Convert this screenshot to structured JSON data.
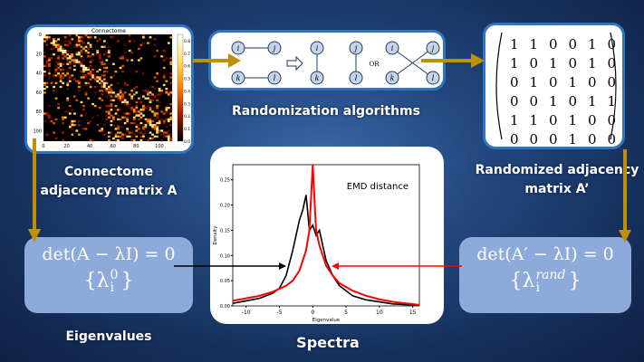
{
  "connectome": {
    "title": "Connectome",
    "caption_line1": "Connectome",
    "caption_line2": "adjacency matrix A",
    "axis_ticks": [
      "0",
      "20",
      "40",
      "60",
      "80",
      "100"
    ],
    "colorbar_ticks": [
      "0.0",
      "0.1",
      "0.2",
      "0.3",
      "0.4",
      "0.5",
      "0.6",
      "0.7",
      "0.8"
    ]
  },
  "randomization": {
    "caption": "Randomization algorithms",
    "or_label": "OR",
    "nodes": [
      "i",
      "j",
      "k",
      "l"
    ]
  },
  "randomized_matrix": {
    "caption_line1": "Randomized adjacency",
    "caption_line2": "matrix A’",
    "rows": [
      [
        1,
        1,
        0,
        0,
        1,
        0
      ],
      [
        1,
        0,
        1,
        0,
        1,
        0
      ],
      [
        0,
        1,
        0,
        1,
        0,
        0
      ],
      [
        0,
        0,
        1,
        0,
        1,
        1
      ],
      [
        1,
        1,
        0,
        1,
        0,
        0
      ],
      [
        0,
        0,
        0,
        1,
        0,
        0
      ]
    ]
  },
  "eigen_left": {
    "equation": "det(A − λI) = 0",
    "set": "{λ",
    "sup": "0",
    "sub": "i",
    "close": "}",
    "caption": "Eigenvalues"
  },
  "eigen_right": {
    "equation": "det(A′ − λI) = 0",
    "set": "{λ",
    "sup": "rand",
    "sub": "i",
    "close": "}"
  },
  "spectra": {
    "caption": "Spectra",
    "annotation": "EMD distance"
  },
  "colors": {
    "arrow": "#bf9000",
    "box_border": "#2e75c0",
    "eigen_box": "#8eaadb",
    "original": "#000000",
    "randomized": "#ff0000"
  },
  "chart_data": {
    "type": "line",
    "xlabel": "Eigenvalue",
    "ylabel": "Density",
    "xlim": [
      -12,
      16
    ],
    "ylim": [
      0,
      0.28
    ],
    "xticks": [
      "-10",
      "-5",
      "0",
      "5",
      "10",
      "15"
    ],
    "yticks": [
      "0.00",
      "0.05",
      "0.10",
      "0.15",
      "0.20",
      "0.25"
    ],
    "series": [
      {
        "color": "#000000",
        "x": [
          -12,
          -10,
          -8,
          -6,
          -5,
          -4,
          -3,
          -2,
          -1.5,
          -1,
          -0.5,
          0,
          0.5,
          1,
          1.5,
          2,
          3,
          4,
          6,
          8,
          10,
          12,
          16
        ],
        "y": [
          0.005,
          0.01,
          0.015,
          0.025,
          0.035,
          0.06,
          0.11,
          0.17,
          0.19,
          0.22,
          0.15,
          0.16,
          0.14,
          0.15,
          0.12,
          0.09,
          0.06,
          0.04,
          0.02,
          0.012,
          0.008,
          0.004,
          0.001
        ]
      },
      {
        "color": "#ff0000",
        "x": [
          -12,
          -10,
          -8,
          -6,
          -4,
          -3,
          -2,
          -1,
          -0.5,
          0,
          0.5,
          1,
          2,
          3,
          4,
          6,
          8,
          10,
          12,
          14,
          16
        ],
        "y": [
          0.01,
          0.015,
          0.02,
          0.028,
          0.04,
          0.05,
          0.07,
          0.11,
          0.15,
          0.28,
          0.15,
          0.12,
          0.08,
          0.06,
          0.045,
          0.03,
          0.02,
          0.013,
          0.008,
          0.005,
          0.002
        ]
      }
    ]
  }
}
